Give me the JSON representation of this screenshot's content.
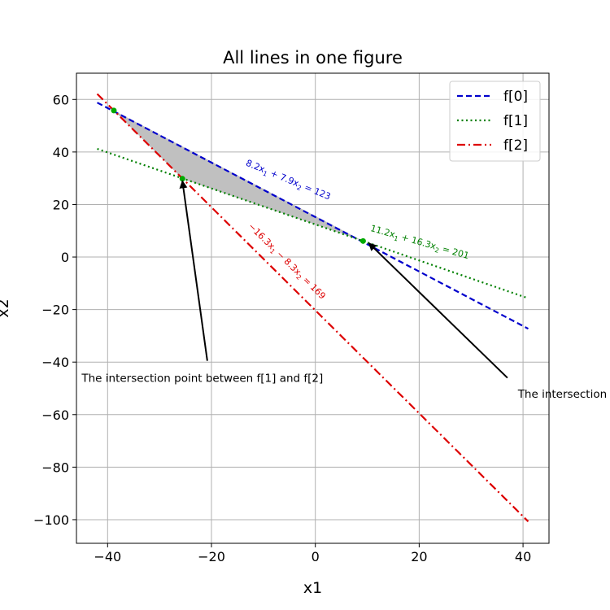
{
  "chart_data": {
    "type": "line",
    "title": "All lines in one figure",
    "xlabel": "x1",
    "ylabel": "x2",
    "xlim": [
      -46,
      45
    ],
    "ylim": [
      -109,
      70
    ],
    "xticks": [
      -40,
      -20,
      0,
      20,
      40
    ],
    "yticks": [
      60,
      40,
      20,
      0,
      -20,
      -40,
      -60,
      -80,
      -100
    ],
    "xtick_labels": [
      "−40",
      "−20",
      "0",
      "20",
      "40"
    ],
    "ytick_labels": [
      "60",
      "40",
      "20",
      "0",
      "−20",
      "−40",
      "−60",
      "−80",
      "−100"
    ],
    "grid": true,
    "legend_position": "top-right",
    "series": [
      {
        "name": "f[0]",
        "color": "#0000cc",
        "style": "dashed",
        "points": [
          [
            -42,
            58.8
          ],
          [
            41,
            -27.3
          ]
        ]
      },
      {
        "name": "f[1]",
        "color": "#008000",
        "style": "dotted",
        "points": [
          [
            -42,
            41.2
          ],
          [
            41,
            -15.7
          ]
        ]
      },
      {
        "name": "f[2]",
        "color": "#dd0000",
        "style": "dashdot",
        "points": [
          [
            -42,
            62.1
          ],
          [
            41,
            -100.7
          ]
        ]
      }
    ],
    "equation_labels": [
      {
        "text_main": "8.2x",
        "text_rest1": " + 7.9x",
        "text_rest2": " = 123",
        "sub": "1",
        "sub2": "2",
        "color": "#0000cc",
        "x": -13.5,
        "y": 35,
        "angle": 22.5
      },
      {
        "text_main": "11.2x",
        "text_rest1": " + 16.3x",
        "text_rest2": " = 201",
        "sub": "1",
        "sub2": "2",
        "color": "#008000",
        "x": 10.5,
        "y": 10,
        "angle": 16
      },
      {
        "text_main": "−16.3x",
        "text_rest1": " − 8.3x",
        "text_rest2": " = 169",
        "sub": "1",
        "sub2": "2",
        "color": "#dd0000",
        "x": -13,
        "y": 11.5,
        "angle": 44.5
      }
    ],
    "shaded_region": {
      "color": "#c0c0c0",
      "points": [
        [
          -38.8,
          55.8
        ],
        [
          -25.6,
          29.8
        ],
        [
          9.2,
          6.1
        ]
      ]
    },
    "intersection_points": [
      {
        "x": -38.8,
        "y": 55.8,
        "color": "#00aa00"
      },
      {
        "x": -25.6,
        "y": 29.8,
        "color": "#00aa00"
      },
      {
        "x": 9.2,
        "y": 6.1,
        "color": "#00aa00"
      }
    ],
    "annotations": [
      {
        "text": "The intersection point between f[1] and f[2]",
        "text_x": -45,
        "text_y": -47.5,
        "tail": [
          -20.8,
          -39.5
        ],
        "head": [
          -25.6,
          29
        ]
      },
      {
        "text": "The intersection",
        "text_x": 39,
        "text_y": -53.5,
        "tail": [
          37,
          -46
        ],
        "head": [
          10.3,
          5.3
        ]
      }
    ]
  }
}
